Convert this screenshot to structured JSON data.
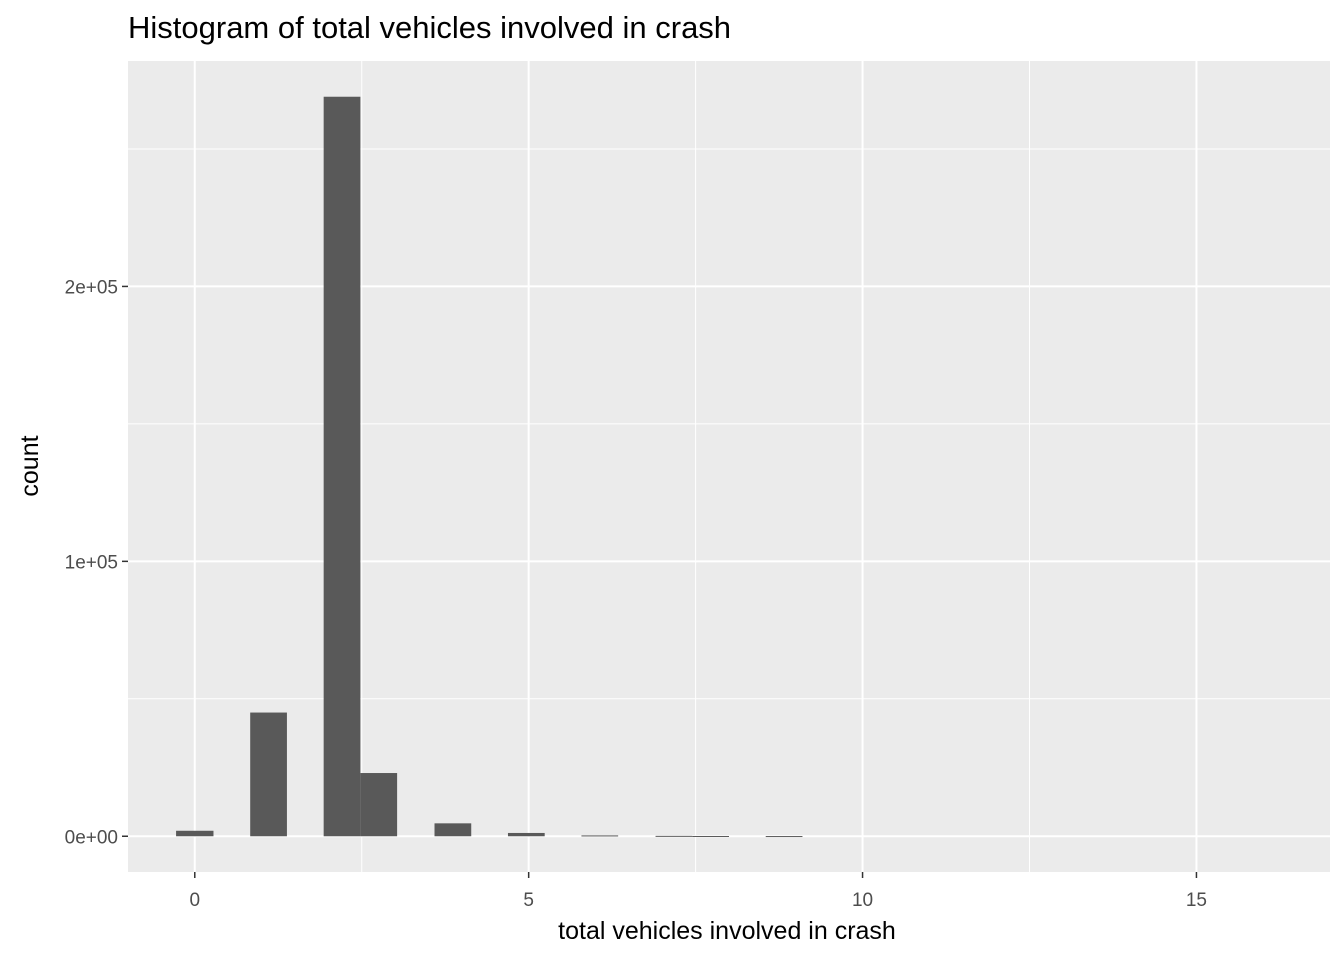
{
  "chart_data": {
    "type": "bar",
    "title": "Histogram of total vehicles involved in crash",
    "xlabel": "total vehicles involved in crash",
    "ylabel": "count",
    "xlim": [
      -1.0,
      17.0
    ],
    "ylim": [
      -13000,
      282000
    ],
    "x_ticks": [
      0,
      5,
      10,
      15
    ],
    "x_tick_labels": [
      "0",
      "5",
      "10",
      "15"
    ],
    "y_ticks": [
      0,
      100000,
      200000
    ],
    "y_tick_labels": [
      "0e+00",
      "1e+05",
      "2e+05"
    ],
    "x_minor_ticks": [
      2.5,
      7.5,
      12.5
    ],
    "y_minor_ticks": [
      50000,
      150000,
      250000
    ],
    "grid": true,
    "background": "#ebebeb",
    "grid_color": "#ffffff",
    "bar_color": "#595959",
    "bins": [
      {
        "x0": -0.28,
        "x1": 0.28,
        "count": 2000
      },
      {
        "x0": 0.83,
        "x1": 1.38,
        "count": 45000
      },
      {
        "x0": 1.93,
        "x1": 2.48,
        "count": 269000
      },
      {
        "x0": 2.48,
        "x1": 3.03,
        "count": 23000
      },
      {
        "x0": 3.59,
        "x1": 4.14,
        "count": 4700
      },
      {
        "x0": 4.69,
        "x1": 5.24,
        "count": 1200
      },
      {
        "x0": 5.79,
        "x1": 6.34,
        "count": 300
      },
      {
        "x0": 6.9,
        "x1": 7.45,
        "count": 150
      },
      {
        "x0": 7.45,
        "x1": 8.0,
        "count": 100
      },
      {
        "x0": 8.55,
        "x1": 9.1,
        "count": 80
      }
    ]
  }
}
